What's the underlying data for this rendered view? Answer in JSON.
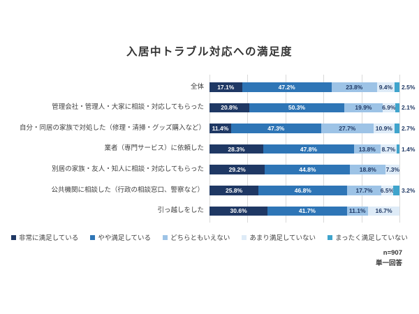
{
  "chart_data": {
    "type": "bar",
    "stacked": true,
    "orientation": "horizontal",
    "title": "入居中トラブル対応への満足度",
    "categories": [
      "全体",
      "管理会社・管理人・大家に相談・対応してもらった",
      "自分・同居の家族で対処した（修理・清掃・グッズ購入など）",
      "業者（専門サービス）に依頼した",
      "別居の家族・友人・知人に相談・対応してもらった",
      "公共機関に相談した（行政の相談窓口、警察など）",
      "引っ越しをした"
    ],
    "series": [
      {
        "name": "非常に満足している",
        "color": "#1F3864",
        "values": [
          17.1,
          20.8,
          11.4,
          28.3,
          29.2,
          25.8,
          30.6
        ]
      },
      {
        "name": "やや満足している",
        "color": "#2E75B6",
        "values": [
          47.2,
          50.3,
          47.3,
          47.8,
          44.8,
          46.8,
          41.7
        ]
      },
      {
        "name": "どちらともいえない",
        "color": "#9DC3E6",
        "values": [
          23.8,
          19.9,
          27.7,
          13.8,
          18.8,
          17.7,
          11.1
        ]
      },
      {
        "name": "あまり満足していない",
        "color": "#DEEBF7",
        "values": [
          9.4,
          6.9,
          10.9,
          8.7,
          7.3,
          6.5,
          16.7
        ]
      },
      {
        "name": "まったく満足していない",
        "color": "#3FA4CC",
        "values": [
          2.5,
          2.1,
          2.7,
          1.4,
          0,
          3.2,
          0
        ]
      }
    ],
    "value_suffix": "%",
    "xlim": [
      0,
      100
    ],
    "gridlines": [
      0,
      20,
      40,
      60,
      80,
      100
    ],
    "legend_position": "bottom",
    "label_colors": {
      "light": "#FFFFFF",
      "dark": "#1F3864"
    },
    "outside_label_threshold": 4
  },
  "footer": {
    "n_label": "n=907",
    "answer_type": "単一回答"
  }
}
